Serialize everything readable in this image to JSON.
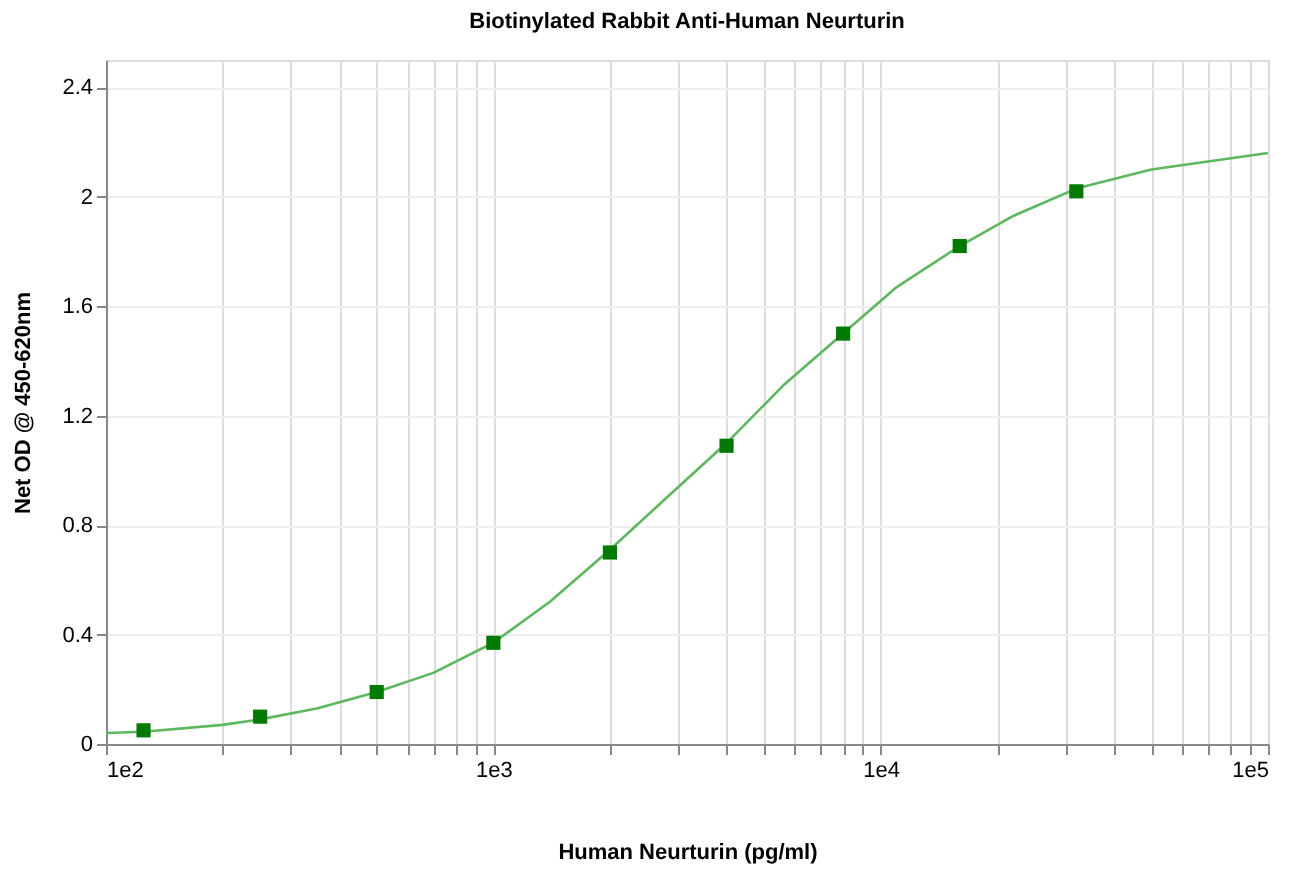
{
  "chart_data": {
    "type": "scatter",
    "title": "Biotinylated Rabbit Anti-Human Neurturin",
    "xlabel": "Human Neurturin (pg/ml)",
    "ylabel": "Net OD @ 450-620nm",
    "log": "x",
    "grid": true,
    "xlim": [
      100,
      100000
    ],
    "ylim": [
      0,
      2.5
    ],
    "yticks": [
      0,
      0.4,
      0.8,
      1.2,
      1.6,
      2,
      2.4
    ],
    "xticks": [
      {
        "value": 100,
        "label": "1e2"
      },
      {
        "value": 200,
        "label": null
      },
      {
        "value": 300,
        "label": null
      },
      {
        "value": 400,
        "label": null
      },
      {
        "value": 500,
        "label": null
      },
      {
        "value": 600,
        "label": null
      },
      {
        "value": 700,
        "label": null
      },
      {
        "value": 800,
        "label": null
      },
      {
        "value": 900,
        "label": null
      },
      {
        "value": 1000,
        "label": "1e3"
      },
      {
        "value": 2000,
        "label": null
      },
      {
        "value": 3000,
        "label": null
      },
      {
        "value": 4000,
        "label": null
      },
      {
        "value": 5000,
        "label": null
      },
      {
        "value": 6000,
        "label": null
      },
      {
        "value": 7000,
        "label": null
      },
      {
        "value": 8000,
        "label": null
      },
      {
        "value": 9000,
        "label": null
      },
      {
        "value": 10000,
        "label": "1e4"
      },
      {
        "value": 20000,
        "label": null
      },
      {
        "value": 30000,
        "label": null
      },
      {
        "value": 40000,
        "label": null
      },
      {
        "value": 50000,
        "label": null
      },
      {
        "value": 60000,
        "label": null
      },
      {
        "value": 70000,
        "label": null
      },
      {
        "value": 80000,
        "label": null
      },
      {
        "value": 90000,
        "label": null
      },
      {
        "value": 100000,
        "label": "1e5"
      }
    ],
    "series": [
      {
        "type": "line",
        "color": "#5cb85c",
        "marker": "none",
        "x": [
          100,
          125,
          200,
          250,
          350,
          500,
          700,
          1000,
          1400,
          2000,
          2800,
          4000,
          5600,
          8000,
          11000,
          16000,
          22000,
          32000,
          50000,
          100000
        ],
        "values": [
          0.04,
          0.045,
          0.07,
          0.09,
          0.13,
          0.19,
          0.26,
          0.37,
          0.52,
          0.71,
          0.9,
          1.1,
          1.31,
          1.5,
          1.67,
          1.82,
          1.93,
          2.03,
          2.1,
          2.16
        ]
      },
      {
        "color": "#007a00",
        "marker": "square",
        "x": [
          125,
          250,
          500,
          1000,
          2000,
          4000,
          8000,
          16000,
          32000
        ],
        "values": [
          0.05,
          0.1,
          0.19,
          0.37,
          0.7,
          1.09,
          1.5,
          1.82,
          2.02
        ]
      }
    ]
  }
}
